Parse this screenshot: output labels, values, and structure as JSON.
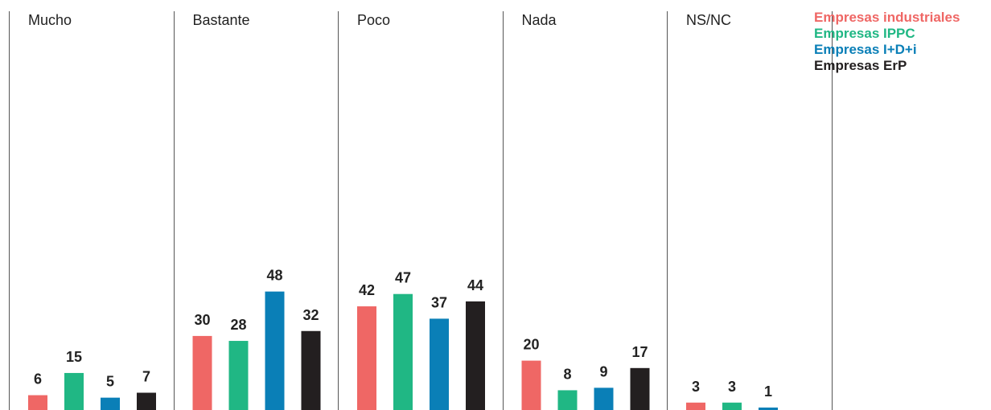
{
  "chart_data": {
    "type": "bar",
    "categories": [
      "Mucho",
      "Bastante",
      "Poco",
      "Nada",
      "NS/NC"
    ],
    "series": [
      {
        "name": "Empresas industriales",
        "color": "#ef6765",
        "values": [
          6,
          30,
          42,
          20,
          3
        ]
      },
      {
        "name": "Empresas IPPC",
        "color": "#20b784",
        "values": [
          15,
          28,
          47,
          8,
          3
        ]
      },
      {
        "name": "Empresas I+D+i",
        "color": "#0a7fb7",
        "values": [
          5,
          48,
          37,
          9,
          1
        ]
      },
      {
        "name": "Empresas ErP",
        "color": "#231f20",
        "values": [
          7,
          32,
          44,
          17,
          null
        ]
      }
    ],
    "ylim": [
      0,
      54
    ],
    "grid": false,
    "legend_position": "right",
    "data_labels": true
  }
}
